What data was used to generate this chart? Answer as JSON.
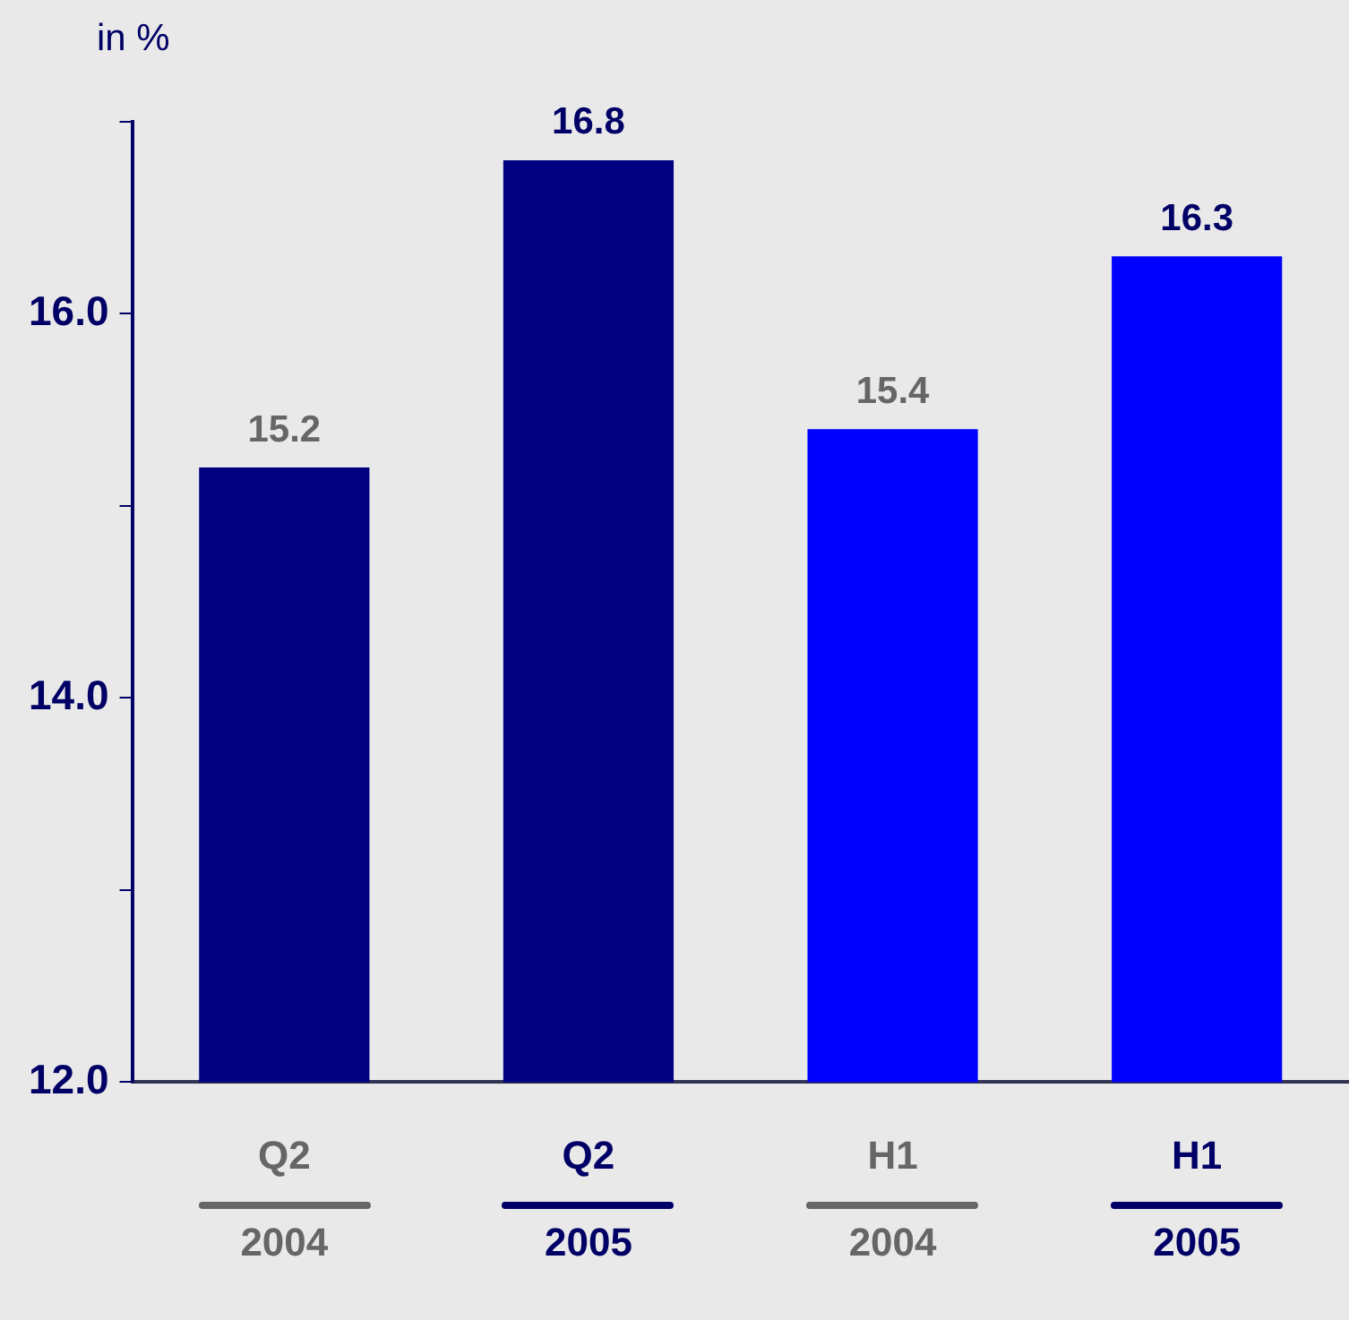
{
  "chart_data": {
    "type": "bar",
    "ylabel": "in %",
    "categories": [
      "Q2\n2004",
      "Q2\n2005",
      "H1\n2004",
      "H1\n2005"
    ],
    "values": [
      15.2,
      16.8,
      15.4,
      16.3
    ],
    "colors": [
      "#000080",
      "#000080",
      "#0000ff",
      "#0000ff"
    ],
    "ylim": [
      12,
      17
    ],
    "yticks": [
      {
        "value": 12,
        "label": "12.0"
      },
      {
        "value": 13,
        "label": null
      },
      {
        "value": 14,
        "label": "14.0"
      },
      {
        "value": 15,
        "label": null
      },
      {
        "value": 16,
        "label": "16.0"
      },
      {
        "value": 17,
        "label": null
      }
    ],
    "grid": false,
    "legend": false,
    "data_labels": true
  }
}
